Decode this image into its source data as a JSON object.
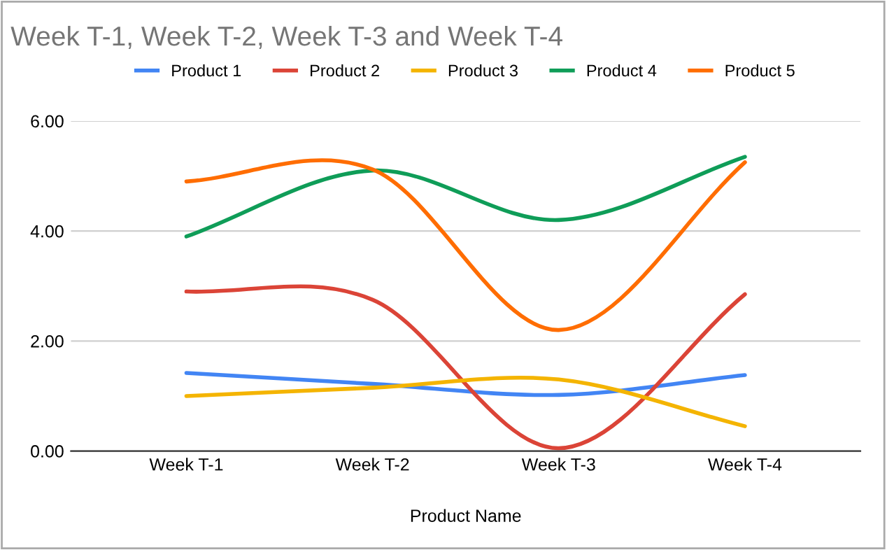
{
  "chart_data": {
    "type": "line",
    "title": "Week T-1, Week T-2, Week T-3 and Week T-4",
    "xlabel": "Product Name",
    "categories": [
      "Week T-1",
      "Week T-2",
      "Week T-3",
      "Week T-4"
    ],
    "series": [
      {
        "name": "Product 1",
        "color": "#4285f4",
        "values": [
          1.42,
          1.22,
          1.02,
          1.38
        ]
      },
      {
        "name": "Product 2",
        "color": "#db4437",
        "values": [
          2.9,
          2.75,
          0.05,
          2.85
        ]
      },
      {
        "name": "Product 3",
        "color": "#f4b400",
        "values": [
          1.0,
          1.15,
          1.3,
          0.45
        ]
      },
      {
        "name": "Product 4",
        "color": "#0f9d58",
        "values": [
          3.9,
          5.1,
          4.2,
          5.35
        ]
      },
      {
        "name": "Product 5",
        "color": "#ff6d01",
        "values": [
          4.9,
          5.12,
          2.2,
          5.25
        ]
      }
    ],
    "ylim": [
      0,
      6
    ],
    "yticks": [
      {
        "value": 0,
        "label": "0.00"
      },
      {
        "value": 2,
        "label": "2.00"
      },
      {
        "value": 4,
        "label": "4.00"
      },
      {
        "value": 6,
        "label": "6.00"
      }
    ],
    "grid": "y",
    "legend": "top"
  }
}
